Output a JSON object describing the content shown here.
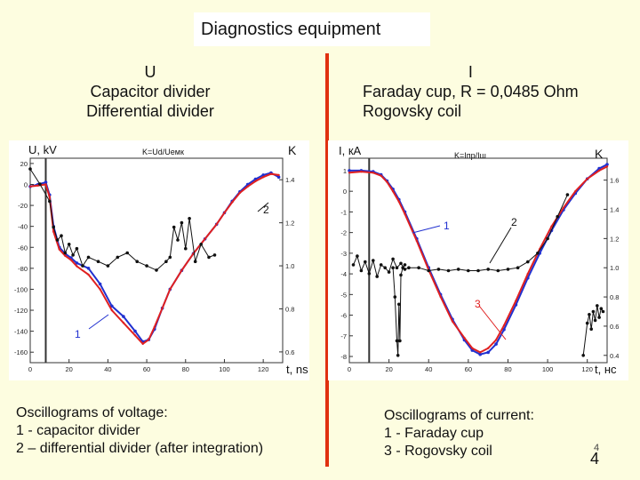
{
  "title": "Diagnostics equipment",
  "left_header": [
    "U",
    "Capacitor divider",
    "Differential divider"
  ],
  "right_header": [
    "I",
    "Faraday cup, R = 0,0485 Ohm",
    "Rogovsky coil"
  ],
  "left_caption": [
    "Oscillograms of voltage:",
    "1 - capacitor divider",
    "2 – differential divider (after integration)"
  ],
  "right_caption": [
    "Oscillograms of current:",
    "1 - Faraday cup",
    "3 - Rogovsky coil"
  ],
  "page_number": "4",
  "colors": {
    "background": "#fdfde0",
    "divider": "#e03010",
    "red": "#e02020",
    "blue": "#2030d0",
    "black": "#111111"
  },
  "chart_data": [
    {
      "type": "line",
      "title": "K=Ud/Uемк",
      "ylabel": "U, kV",
      "xlabel": "t, ns",
      "y2label": "K",
      "xlim": [
        0,
        130
      ],
      "ylim": [
        -170,
        25
      ],
      "y2lim": [
        0.55,
        1.5
      ],
      "xticks": [
        0,
        20,
        40,
        60,
        80,
        100,
        120
      ],
      "yticks": [
        20,
        0,
        -20,
        -40,
        -60,
        -80,
        -100,
        -120,
        -140,
        -160
      ],
      "y2ticks": [
        1.4,
        1.2,
        1.0,
        0.8,
        0.6
      ],
      "annotations": [
        "1",
        "2"
      ],
      "series": [
        {
          "label": "1",
          "color": "#2030d0",
          "axis": "y",
          "x": [
            0,
            4,
            8,
            10,
            12,
            15,
            18,
            21,
            24,
            30,
            36,
            42,
            48,
            54,
            58,
            61,
            64,
            68,
            72,
            78,
            84,
            90,
            96,
            100,
            104,
            108,
            112,
            116,
            120,
            124,
            128
          ],
          "y": [
            -2,
            0,
            2,
            -10,
            -40,
            -60,
            -66,
            -70,
            -75,
            -80,
            -95,
            -116,
            -126,
            -140,
            -150,
            -148,
            -138,
            -118,
            -100,
            -82,
            -66,
            -52,
            -38,
            -27,
            -16,
            -7,
            0,
            5,
            9,
            11,
            7
          ]
        },
        {
          "label": "1",
          "color": "#e02020",
          "axis": "y",
          "x": [
            0,
            4,
            8,
            10,
            12,
            15,
            18,
            21,
            24,
            30,
            36,
            42,
            48,
            54,
            58,
            61,
            64,
            68,
            72,
            78,
            84,
            90,
            96,
            100,
            104,
            108,
            112,
            116,
            120,
            124,
            128
          ],
          "y": [
            -2,
            -1,
            0,
            -12,
            -45,
            -62,
            -68,
            -72,
            -78,
            -86,
            -100,
            -120,
            -132,
            -144,
            -152,
            -148,
            -136,
            -118,
            -100,
            -82,
            -66,
            -52,
            -38,
            -27,
            -17,
            -8,
            -2,
            3,
            7,
            10,
            9
          ]
        },
        {
          "label": "2",
          "color": "#111111",
          "axis": "y2",
          "x": [
            0,
            5,
            10,
            12,
            14,
            16,
            18,
            20,
            22,
            24,
            27,
            30,
            35,
            40,
            45,
            50,
            55,
            60,
            65,
            70,
            72,
            74,
            76,
            78,
            80,
            82,
            85,
            88,
            92,
            95
          ],
          "y": [
            1.45,
            1.38,
            1.3,
            1.18,
            1.12,
            1.14,
            1.06,
            1.1,
            1.05,
            1.08,
            1.0,
            1.04,
            1.02,
            1.0,
            1.04,
            1.06,
            1.02,
            1.0,
            0.98,
            1.02,
            1.04,
            1.18,
            1.12,
            1.2,
            1.08,
            1.22,
            1.02,
            1.1,
            1.04,
            1.05
          ]
        }
      ]
    },
    {
      "type": "line",
      "title": "K=Iпр/Iш",
      "ylabel": "I, кА",
      "xlabel": "t, нс",
      "y2label": "K",
      "xlim": [
        0,
        130
      ],
      "ylim": [
        -8.3,
        1.6
      ],
      "y2lim": [
        0.35,
        1.75
      ],
      "xticks": [
        0,
        20,
        40,
        60,
        80,
        100,
        120
      ],
      "yticks": [
        1,
        0,
        -1,
        -2,
        -3,
        -4,
        -5,
        -6,
        -7,
        -8
      ],
      "y2ticks": [
        1.6,
        1.4,
        1.2,
        1.0,
        0.8,
        0.6,
        0.4
      ],
      "annotations": [
        "1",
        "2",
        "3"
      ],
      "series": [
        {
          "label": "1",
          "color": "#2030d0",
          "axis": "y",
          "x": [
            0,
            6,
            12,
            16,
            19,
            22,
            25,
            28,
            34,
            40,
            46,
            52,
            58,
            62,
            66,
            70,
            74,
            78,
            84,
            90,
            96,
            102,
            108,
            114,
            120,
            126,
            130
          ],
          "y": [
            1.0,
            1.0,
            0.95,
            0.8,
            0.5,
            0.1,
            -0.4,
            -1.0,
            -2.3,
            -3.7,
            -5.0,
            -6.2,
            -7.2,
            -7.7,
            -7.9,
            -7.8,
            -7.4,
            -6.7,
            -5.5,
            -4.2,
            -3.0,
            -1.9,
            -0.9,
            -0.1,
            0.6,
            1.1,
            1.3
          ]
        },
        {
          "label": "3",
          "color": "#e02020",
          "axis": "y",
          "x": [
            0,
            6,
            12,
            16,
            19,
            22,
            25,
            28,
            34,
            40,
            46,
            52,
            58,
            62,
            66,
            70,
            74,
            78,
            84,
            90,
            96,
            102,
            108,
            114,
            120,
            126,
            130
          ],
          "y": [
            0.9,
            0.95,
            0.9,
            0.75,
            0.45,
            0.0,
            -0.5,
            -1.1,
            -2.4,
            -3.8,
            -5.1,
            -6.3,
            -7.1,
            -7.6,
            -7.8,
            -7.6,
            -7.2,
            -6.5,
            -5.3,
            -4.0,
            -2.8,
            -1.7,
            -0.8,
            0.0,
            0.6,
            1.0,
            1.2
          ]
        },
        {
          "label": "2",
          "color": "#111111",
          "axis": "y2",
          "x": [
            2,
            4,
            6,
            8,
            10,
            12,
            14,
            16,
            18,
            20,
            22,
            24,
            26,
            28,
            30,
            35,
            40,
            45,
            50,
            55,
            60,
            65,
            70,
            75,
            80,
            85,
            90,
            95,
            100,
            105,
            110
          ],
          "y": [
            1.02,
            1.08,
            0.98,
            1.04,
            0.96,
            1.05,
            0.94,
            1.02,
            1.0,
            0.97,
            1.06,
            1.0,
            1.03,
            0.99,
            1.0,
            1.0,
            0.98,
            0.99,
            0.98,
            0.99,
            0.98,
            0.98,
            0.99,
            0.98,
            0.99,
            1.0,
            1.04,
            1.1,
            1.2,
            1.35,
            1.5
          ]
        },
        {
          "label": "",
          "color": "#111111",
          "axis": "y2",
          "x": [
            22,
            23,
            24,
            24.5,
            25,
            25.5,
            26,
            27,
            28
          ],
          "y": [
            1.0,
            0.8,
            0.5,
            0.4,
            0.75,
            0.5,
            0.95,
            1.0,
            1.02
          ]
        },
        {
          "label": "",
          "color": "#111111",
          "axis": "y2",
          "x": [
            118,
            120,
            121,
            122,
            123,
            124,
            125,
            126,
            127,
            128
          ],
          "y": [
            0.4,
            0.62,
            0.68,
            0.58,
            0.7,
            0.64,
            0.74,
            0.66,
            0.72,
            0.7
          ]
        }
      ]
    }
  ]
}
